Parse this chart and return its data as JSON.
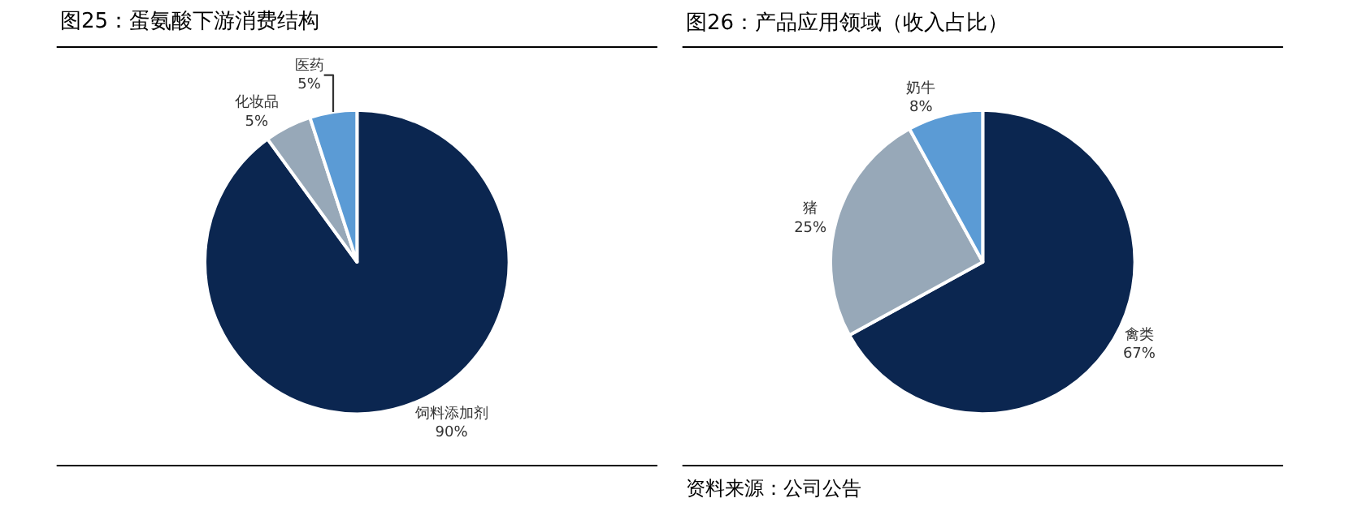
{
  "chart_data": [
    {
      "type": "pie",
      "title": "图25：蛋氨酸下游消费结构",
      "categories": [
        "饲料添加剂",
        "化妆品",
        "医药"
      ],
      "values": [
        90,
        5,
        5
      ],
      "value_labels": [
        "90%",
        "5%",
        "5%"
      ],
      "colors": [
        "#0b2650",
        "#97a8b8",
        "#5b9bd5"
      ]
    },
    {
      "type": "pie",
      "title": "图26：产品应用领域（收入占比）",
      "categories": [
        "禽类",
        "猪",
        "奶牛"
      ],
      "values": [
        67,
        25,
        8
      ],
      "value_labels": [
        "67%",
        "25%",
        "8%"
      ],
      "colors": [
        "#0b2650",
        "#97a8b8",
        "#5b9bd5"
      ],
      "annotations": [
        "资料来源：公司公告"
      ]
    }
  ]
}
